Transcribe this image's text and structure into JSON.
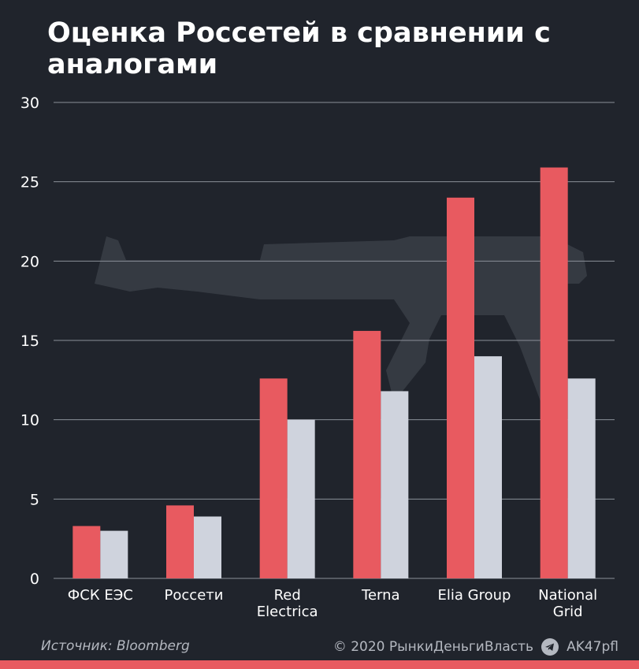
{
  "title": "Оценка Россетей в сравнении с аналогами",
  "footer": {
    "source": "Источник: Bloomberg",
    "copyright": "© 2020  РынкиДеньгиВласть",
    "channel": "AK47pfl",
    "channel_icon": "telegram-icon"
  },
  "colors": {
    "background": "#20242c",
    "series_1": "#e85a60",
    "series_2": "#cfd3dd",
    "grid": "#8a8f98",
    "text": "#ffffff",
    "footer_strip": "#e85a60"
  },
  "chart_data": {
    "type": "bar",
    "categories": [
      "ФСК ЕЭС",
      "Россети",
      "Red Electrica",
      "Terna",
      "Elia Group",
      "National Grid"
    ],
    "category_lines": [
      [
        "ФСК ЕЭС"
      ],
      [
        "Россети"
      ],
      [
        "Red",
        "Electrica"
      ],
      [
        "Terna"
      ],
      [
        "Elia Group"
      ],
      [
        "National",
        "Grid"
      ]
    ],
    "series": [
      {
        "values": [
          3.3,
          4.6,
          12.6,
          15.6,
          24.0,
          25.9
        ]
      },
      {
        "values": [
          3.0,
          3.9,
          10.0,
          11.8,
          14.0,
          12.6
        ]
      }
    ],
    "yticks": [
      "0",
      "5",
      "10",
      "15",
      "20",
      "25",
      "30"
    ],
    "ylim": [
      0,
      30
    ],
    "grid": true,
    "legend": "none"
  }
}
